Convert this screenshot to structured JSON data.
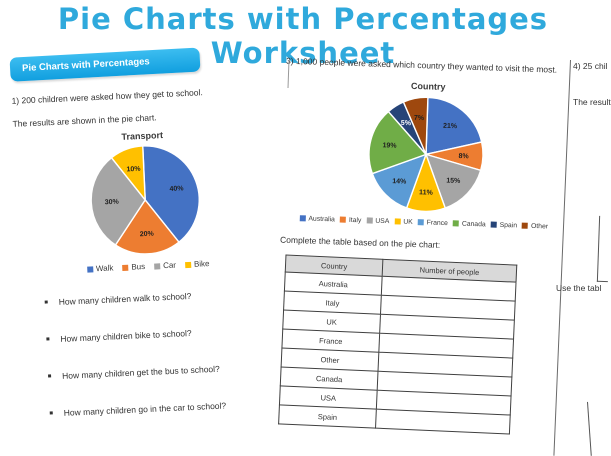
{
  "title": "Pie Charts with Percentages Worksheet",
  "colors": {
    "title_blue": "#2fa9dc",
    "banner_blue": "#17a6e4",
    "table_header_fill": "#d9d9d9"
  },
  "left_page": {
    "banner": "Pie Charts with Percentages",
    "q1": "1)   200 children were asked how they get to school.",
    "q1b": "The results are shown in the pie chart.",
    "questions": [
      "How many children walk to school?",
      "How many children bike to school?",
      "How many children get the bus to school?",
      "How many children go in the car to school?"
    ]
  },
  "mid_page": {
    "q3": "3) 1,000 people were asked which country they wanted to visit the most.",
    "complete_label": "Complete the table based on the pie chart:",
    "table": {
      "headers": [
        "Country",
        "Number of people"
      ],
      "rows": [
        "Australia",
        "Italy",
        "UK",
        "France",
        "Other",
        "Canada",
        "USA",
        "Spain"
      ],
      "value_column_empty": true
    }
  },
  "right_page": {
    "fragment_q4": "4) 25 chil",
    "fragment_results": "The result",
    "fragment_use_table": "Use the tabl"
  },
  "chart_data": [
    {
      "type": "pie",
      "title": "Transport",
      "labels": [
        "Walk",
        "Bus",
        "Car",
        "Bike"
      ],
      "values": [
        40,
        20,
        30,
        10
      ],
      "data_labels": [
        "40%",
        "20%",
        "30%",
        "10%"
      ],
      "colors": [
        "#4472c4",
        "#ed7d31",
        "#a5a5a5",
        "#ffc000"
      ],
      "white_labels": [],
      "label_radius": 0.62,
      "start_angle": 0,
      "legend_position": "bottom",
      "context_total": 200
    },
    {
      "type": "pie",
      "title": "Country",
      "labels": [
        "Australia",
        "Italy",
        "USA",
        "UK",
        "France",
        "Canada",
        "Spain",
        "Other"
      ],
      "values": [
        21,
        8,
        15,
        11,
        14,
        19,
        5,
        7
      ],
      "data_labels": [
        "21%",
        "8%",
        "15%",
        "11%",
        "14%",
        "19%",
        "5%",
        "7%"
      ],
      "colors": [
        "#4472c4",
        "#ed7d31",
        "#a5a5a5",
        "#ffc000",
        "#5b9bd5",
        "#70ad47",
        "#264478",
        "#9e480e"
      ],
      "white_labels": [
        "Spain"
      ],
      "label_radius": 0.66,
      "start_angle": 0,
      "legend_position": "bottom",
      "context_total": 1000
    }
  ]
}
